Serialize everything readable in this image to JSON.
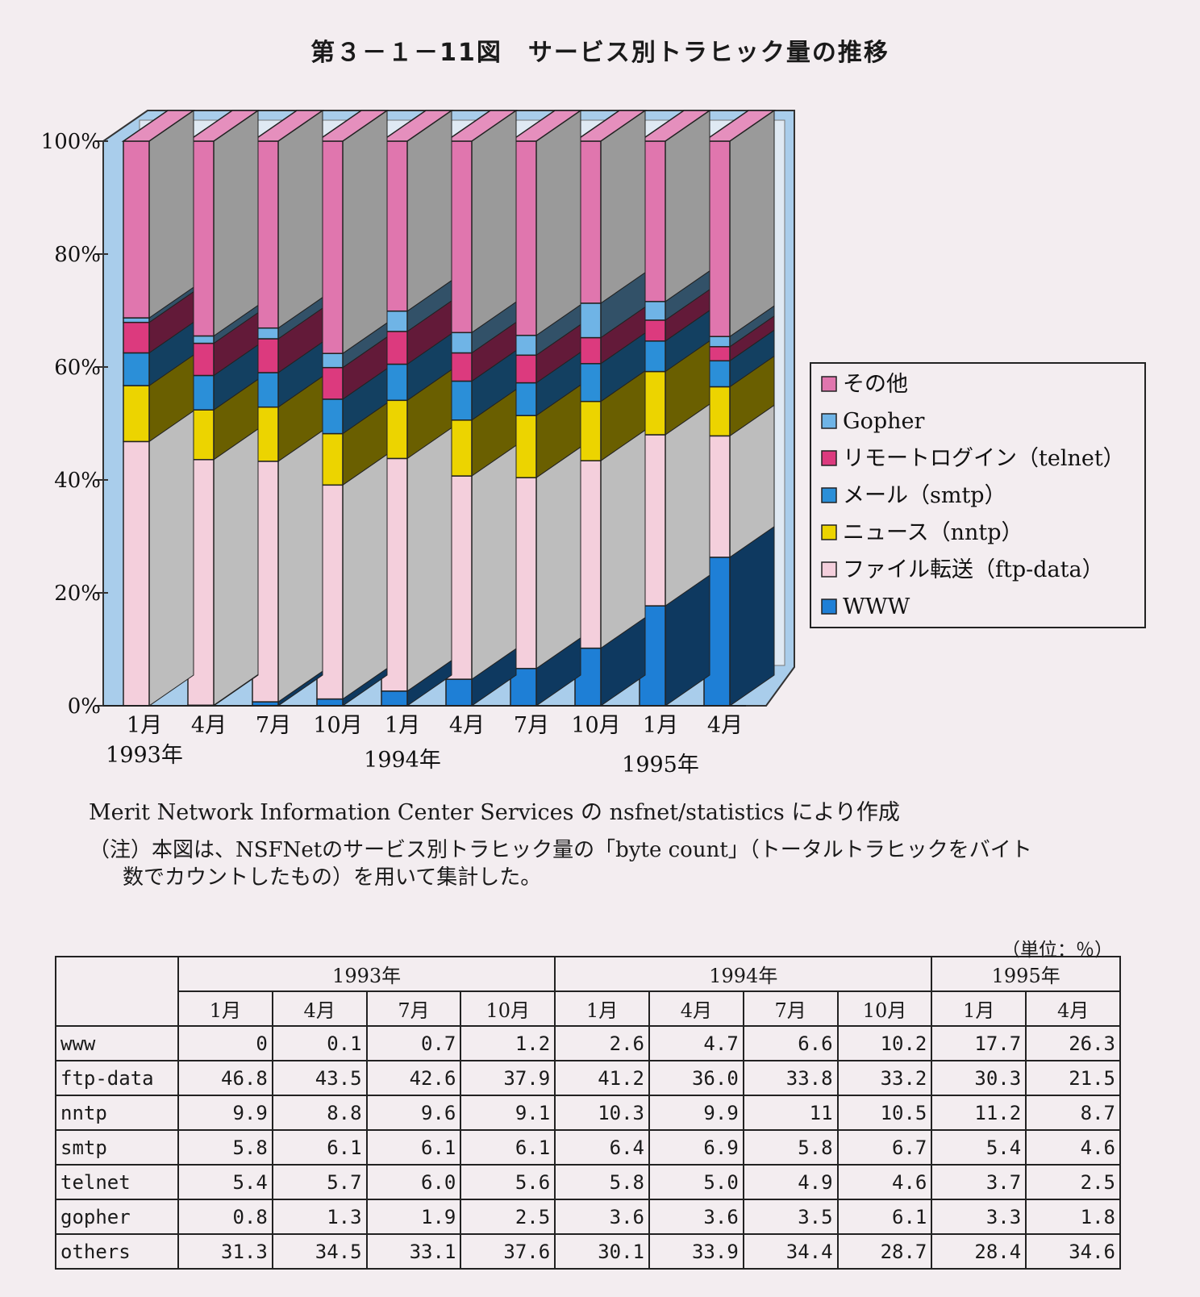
{
  "title": "第３－１－11図　サービス別トラヒック量の推移",
  "notes": {
    "source": "Merit Network Information Center Services の nsfnet/statistics により作成",
    "remark_line1": "（注）本図は、NSFNetのサービス別トラヒック量の「byte count」（トータルトラヒックをバイト",
    "remark_line2": "数でカウントしたもの）を用いて集計した。"
  },
  "table": {
    "unit": "（単位：％）",
    "years": [
      {
        "label": "1993年",
        "span": 4
      },
      {
        "label": "1994年",
        "span": 4
      },
      {
        "label": "1995年",
        "span": 2
      }
    ],
    "months": [
      "1月",
      "4月",
      "7月",
      "10月",
      "1月",
      "4月",
      "7月",
      "10月",
      "1月",
      "4月"
    ],
    "rows": [
      {
        "label": "www",
        "values": [
          "0",
          "0.1",
          "0.7",
          "1.2",
          "2.6",
          "4.7",
          "6.6",
          "10.2",
          "17.7",
          "26.3"
        ]
      },
      {
        "label": "ftp-data",
        "values": [
          "46.8",
          "43.5",
          "42.6",
          "37.9",
          "41.2",
          "36.0",
          "33.8",
          "33.2",
          "30.3",
          "21.5"
        ]
      },
      {
        "label": "nntp",
        "values": [
          "9.9",
          "8.8",
          "9.6",
          "9.1",
          "10.3",
          "9.9",
          "11",
          "10.5",
          "11.2",
          "8.7"
        ]
      },
      {
        "label": "smtp",
        "values": [
          "5.8",
          "6.1",
          "6.1",
          "6.1",
          "6.4",
          "6.9",
          "5.8",
          "6.7",
          "5.4",
          "4.6"
        ]
      },
      {
        "label": "telnet",
        "values": [
          "5.4",
          "5.7",
          "6.0",
          "5.6",
          "5.8",
          "5.0",
          "4.9",
          "4.6",
          "3.7",
          "2.5"
        ]
      },
      {
        "label": "gopher",
        "values": [
          "0.8",
          "1.3",
          "1.9",
          "2.5",
          "3.6",
          "3.6",
          "3.5",
          "6.1",
          "3.3",
          "1.8"
        ]
      },
      {
        "label": "others",
        "values": [
          "31.3",
          "34.5",
          "33.1",
          "37.6",
          "30.1",
          "33.9",
          "34.4",
          "28.7",
          "28.4",
          "34.6"
        ]
      }
    ]
  },
  "chart_data": {
    "type": "bar",
    "stacked": true,
    "percent": true,
    "categories": [
      "1月",
      "4月",
      "7月",
      "10月",
      "1月",
      "4月",
      "7月",
      "10月",
      "1月",
      "4月"
    ],
    "year_labels": [
      {
        "label": "1993年",
        "index": 0
      },
      {
        "label": "1994年",
        "index": 4
      },
      {
        "label": "1995年",
        "index": 8
      }
    ],
    "y_ticks": [
      "0%",
      "20%",
      "40%",
      "60%",
      "80%",
      "100%"
    ],
    "ylim": [
      0,
      100
    ],
    "legend_position": "right",
    "series": [
      {
        "name": "WWW",
        "color": "#1e7fd6",
        "values": [
          0,
          0.1,
          0.7,
          1.2,
          2.6,
          4.7,
          6.6,
          10.2,
          17.7,
          26.3
        ]
      },
      {
        "name": "ファイル転送（ftp-data）",
        "color": "#f4cfdc",
        "values": [
          46.8,
          43.5,
          42.6,
          37.9,
          41.2,
          36.0,
          33.8,
          33.2,
          30.3,
          21.5
        ]
      },
      {
        "name": "ニュース（nntp）",
        "color": "#ecd400",
        "values": [
          9.9,
          8.8,
          9.6,
          9.1,
          10.3,
          9.9,
          11,
          10.5,
          11.2,
          8.7
        ]
      },
      {
        "name": "メール（smtp）",
        "color": "#2b8fd8",
        "values": [
          5.8,
          6.1,
          6.1,
          6.1,
          6.4,
          6.9,
          5.8,
          6.7,
          5.4,
          4.6
        ]
      },
      {
        "name": "リモートログイン（telnet）",
        "color": "#dc3a7e",
        "values": [
          5.4,
          5.7,
          6.0,
          5.6,
          5.8,
          5.0,
          4.9,
          4.6,
          3.7,
          2.5
        ]
      },
      {
        "name": "Gopher",
        "color": "#6fb4e6",
        "values": [
          0.8,
          1.3,
          1.9,
          2.5,
          3.6,
          3.6,
          3.5,
          6.1,
          3.3,
          1.8
        ]
      },
      {
        "name": "その他",
        "color": "#e076ae",
        "values": [
          31.3,
          34.5,
          33.1,
          37.6,
          30.1,
          33.9,
          34.4,
          28.7,
          28.4,
          34.6
        ]
      }
    ],
    "legend_order": [
      "その他",
      "Gopher",
      "リモートログイン（telnet）",
      "メール（smtp）",
      "ニュース（nntp）",
      "ファイル転送（ftp-data）",
      "WWW"
    ],
    "colors": {
      "frame": "#a9cdeb",
      "side_fill": "#a9a9a9",
      "background": "#f3edf0"
    }
  }
}
